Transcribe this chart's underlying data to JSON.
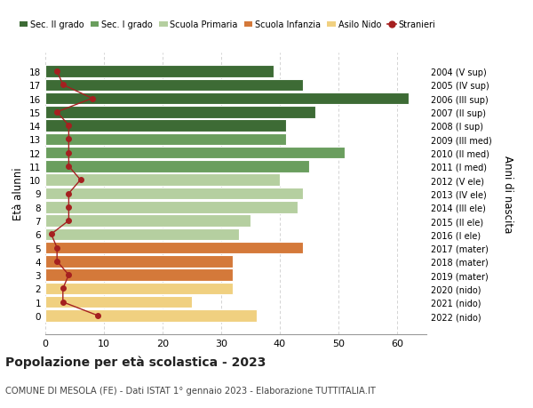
{
  "ages": [
    18,
    17,
    16,
    15,
    14,
    13,
    12,
    11,
    10,
    9,
    8,
    7,
    6,
    5,
    4,
    3,
    2,
    1,
    0
  ],
  "bar_values": [
    39,
    44,
    62,
    46,
    41,
    41,
    51,
    45,
    40,
    44,
    43,
    35,
    33,
    44,
    32,
    32,
    32,
    25,
    36
  ],
  "bar_colors": [
    "#3d6b35",
    "#3d6b35",
    "#3d6b35",
    "#3d6b35",
    "#3d6b35",
    "#6a9e5e",
    "#6a9e5e",
    "#6a9e5e",
    "#b5cfa0",
    "#b5cfa0",
    "#b5cfa0",
    "#b5cfa0",
    "#b5cfa0",
    "#d4793a",
    "#d4793a",
    "#d4793a",
    "#f0d080",
    "#f0d080",
    "#f0d080"
  ],
  "stranieri_values": [
    2,
    3,
    8,
    2,
    4,
    4,
    4,
    4,
    6,
    4,
    4,
    4,
    1,
    2,
    2,
    4,
    3,
    3,
    9
  ],
  "right_labels": [
    "2004 (V sup)",
    "2005 (IV sup)",
    "2006 (III sup)",
    "2007 (II sup)",
    "2008 (I sup)",
    "2009 (III med)",
    "2010 (II med)",
    "2011 (I med)",
    "2012 (V ele)",
    "2013 (IV ele)",
    "2014 (III ele)",
    "2015 (II ele)",
    "2016 (I ele)",
    "2017 (mater)",
    "2018 (mater)",
    "2019 (mater)",
    "2020 (nido)",
    "2021 (nido)",
    "2022 (nido)"
  ],
  "legend_labels": [
    "Sec. II grado",
    "Sec. I grado",
    "Scuola Primaria",
    "Scuola Infanzia",
    "Asilo Nido",
    "Stranieri"
  ],
  "legend_colors": [
    "#3d6b35",
    "#6a9e5e",
    "#b5cfa0",
    "#d4793a",
    "#f0d080",
    "#c0392b"
  ],
  "ylabel": "Età alunni",
  "ylabel2": "Anni di nascita",
  "title": "Popolazione per età scolastica - 2023",
  "subtitle": "COMUNE DI MESOLA (FE) - Dati ISTAT 1° gennaio 2023 - Elaborazione TUTTITALIA.IT",
  "xlim": [
    0,
    65
  ],
  "xticks": [
    0,
    10,
    20,
    30,
    40,
    50,
    60
  ],
  "bg_color": "#ffffff",
  "bar_edgecolor": "#ffffff",
  "grid_color": "#cccccc",
  "stranieri_color": "#a52020",
  "stranieri_linecolor": "#a52020"
}
